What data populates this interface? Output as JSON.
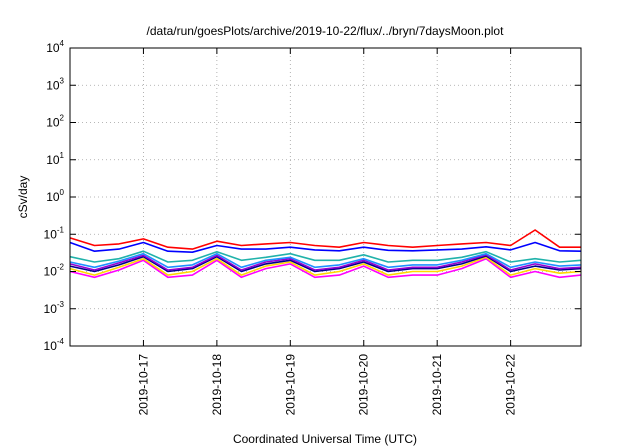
{
  "chart_data": {
    "type": "line",
    "title": "/data/run/goesPlots/archive/2019-10-22/flux/../bryn/7daysMoon.plot",
    "xlabel": "Coordinated Universal Time (UTC)",
    "ylabel": "cSv/day",
    "yscale": "log",
    "ylim": [
      0.0001,
      10000
    ],
    "xlim": [
      "2019-10-16T00:00",
      "2019-10-22T23:00"
    ],
    "grid": true,
    "y_ticks": [
      {
        "base": "10",
        "exp": "-4"
      },
      {
        "base": "10",
        "exp": "-3"
      },
      {
        "base": "10",
        "exp": "-2"
      },
      {
        "base": "10",
        "exp": "-1"
      },
      {
        "base": "10",
        "exp": "0"
      },
      {
        "base": "10",
        "exp": "1"
      },
      {
        "base": "10",
        "exp": "2"
      },
      {
        "base": "10",
        "exp": "3"
      },
      {
        "base": "10",
        "exp": "4"
      }
    ],
    "x_ticks": [
      "2019-10-17",
      "2019-10-18",
      "2019-10-19",
      "2019-10-20",
      "2019-10-21",
      "2019-10-22"
    ],
    "series": [
      {
        "color": "#ff00ff",
        "x": [
          "2019-10-16T00:00",
          "2019-10-16T08:00",
          "2019-10-16T16:00",
          "2019-10-17T00:00",
          "2019-10-17T08:00",
          "2019-10-17T16:00",
          "2019-10-18T00:00",
          "2019-10-18T08:00",
          "2019-10-18T16:00",
          "2019-10-19T00:00",
          "2019-10-19T08:00",
          "2019-10-19T16:00",
          "2019-10-20T00:00",
          "2019-10-20T08:00",
          "2019-10-20T16:00",
          "2019-10-21T00:00",
          "2019-10-21T08:00",
          "2019-10-21T16:00",
          "2019-10-22T00:00",
          "2019-10-22T08:00",
          "2019-10-22T16:00",
          "2019-10-22T23:00"
        ],
        "values": [
          0.01,
          0.007,
          0.011,
          0.02,
          0.007,
          0.008,
          0.02,
          0.007,
          0.012,
          0.016,
          0.007,
          0.008,
          0.014,
          0.007,
          0.008,
          0.008,
          0.012,
          0.022,
          0.007,
          0.01,
          0.007,
          0.008
        ]
      },
      {
        "color": "#ffd700",
        "x": [
          "2019-10-16T00:00",
          "2019-10-16T08:00",
          "2019-10-16T16:00",
          "2019-10-17T00:00",
          "2019-10-17T08:00",
          "2019-10-17T16:00",
          "2019-10-18T00:00",
          "2019-10-18T08:00",
          "2019-10-18T16:00",
          "2019-10-19T00:00",
          "2019-10-19T08:00",
          "2019-10-19T16:00",
          "2019-10-20T00:00",
          "2019-10-20T08:00",
          "2019-10-20T16:00",
          "2019-10-21T00:00",
          "2019-10-21T08:00",
          "2019-10-21T16:00",
          "2019-10-22T00:00",
          "2019-10-22T08:00",
          "2019-10-22T16:00",
          "2019-10-22T23:00"
        ],
        "values": [
          0.012,
          0.008,
          0.013,
          0.022,
          0.008,
          0.01,
          0.022,
          0.008,
          0.014,
          0.018,
          0.008,
          0.01,
          0.016,
          0.008,
          0.01,
          0.01,
          0.014,
          0.024,
          0.008,
          0.012,
          0.009,
          0.01
        ]
      },
      {
        "color": "#00008b",
        "x": [
          "2019-10-16T00:00",
          "2019-10-16T08:00",
          "2019-10-16T16:00",
          "2019-10-17T00:00",
          "2019-10-17T08:00",
          "2019-10-17T16:00",
          "2019-10-18T00:00",
          "2019-10-18T08:00",
          "2019-10-18T16:00",
          "2019-10-19T00:00",
          "2019-10-19T08:00",
          "2019-10-19T16:00",
          "2019-10-20T00:00",
          "2019-10-20T08:00",
          "2019-10-20T16:00",
          "2019-10-21T00:00",
          "2019-10-21T08:00",
          "2019-10-21T16:00",
          "2019-10-22T00:00",
          "2019-10-22T08:00",
          "2019-10-22T16:00",
          "2019-10-22T23:00"
        ],
        "values": [
          0.014,
          0.01,
          0.015,
          0.025,
          0.01,
          0.012,
          0.025,
          0.01,
          0.016,
          0.02,
          0.01,
          0.012,
          0.018,
          0.01,
          0.012,
          0.012,
          0.016,
          0.026,
          0.01,
          0.014,
          0.011,
          0.012
        ]
      },
      {
        "color": "#9400d3",
        "x": [
          "2019-10-16T00:00",
          "2019-10-16T08:00",
          "2019-10-16T16:00",
          "2019-10-17T00:00",
          "2019-10-17T08:00",
          "2019-10-17T16:00",
          "2019-10-18T00:00",
          "2019-10-18T08:00",
          "2019-10-18T16:00",
          "2019-10-19T00:00",
          "2019-10-19T08:00",
          "2019-10-19T16:00",
          "2019-10-20T00:00",
          "2019-10-20T08:00",
          "2019-10-20T16:00",
          "2019-10-21T00:00",
          "2019-10-21T08:00",
          "2019-10-21T16:00",
          "2019-10-22T00:00",
          "2019-10-22T08:00",
          "2019-10-22T16:00",
          "2019-10-22T23:00"
        ],
        "values": [
          0.016,
          0.011,
          0.017,
          0.027,
          0.011,
          0.013,
          0.027,
          0.011,
          0.018,
          0.022,
          0.011,
          0.013,
          0.02,
          0.011,
          0.013,
          0.013,
          0.018,
          0.028,
          0.011,
          0.016,
          0.012,
          0.013
        ]
      },
      {
        "color": "#1e90ff",
        "x": [
          "2019-10-16T00:00",
          "2019-10-16T08:00",
          "2019-10-16T16:00",
          "2019-10-17T00:00",
          "2019-10-17T08:00",
          "2019-10-17T16:00",
          "2019-10-18T00:00",
          "2019-10-18T08:00",
          "2019-10-18T16:00",
          "2019-10-19T00:00",
          "2019-10-19T08:00",
          "2019-10-19T16:00",
          "2019-10-20T00:00",
          "2019-10-20T08:00",
          "2019-10-20T16:00",
          "2019-10-21T00:00",
          "2019-10-21T08:00",
          "2019-10-21T16:00",
          "2019-10-22T00:00",
          "2019-10-22T08:00",
          "2019-10-22T16:00",
          "2019-10-22T23:00"
        ],
        "values": [
          0.018,
          0.013,
          0.019,
          0.03,
          0.013,
          0.015,
          0.03,
          0.013,
          0.02,
          0.024,
          0.013,
          0.015,
          0.022,
          0.013,
          0.015,
          0.015,
          0.02,
          0.03,
          0.013,
          0.018,
          0.014,
          0.015
        ]
      },
      {
        "color": "#20b2aa",
        "x": [
          "2019-10-16T00:00",
          "2019-10-16T08:00",
          "2019-10-16T16:00",
          "2019-10-17T00:00",
          "2019-10-17T08:00",
          "2019-10-17T16:00",
          "2019-10-18T00:00",
          "2019-10-18T08:00",
          "2019-10-18T16:00",
          "2019-10-19T00:00",
          "2019-10-19T08:00",
          "2019-10-19T16:00",
          "2019-10-20T00:00",
          "2019-10-20T08:00",
          "2019-10-20T16:00",
          "2019-10-21T00:00",
          "2019-10-21T08:00",
          "2019-10-21T16:00",
          "2019-10-22T00:00",
          "2019-10-22T08:00",
          "2019-10-22T16:00",
          "2019-10-22T23:00"
        ],
        "values": [
          0.025,
          0.018,
          0.022,
          0.035,
          0.018,
          0.02,
          0.034,
          0.02,
          0.024,
          0.03,
          0.02,
          0.02,
          0.028,
          0.018,
          0.02,
          0.02,
          0.024,
          0.034,
          0.018,
          0.022,
          0.018,
          0.02
        ]
      },
      {
        "color": "#0000ff",
        "x": [
          "2019-10-16T00:00",
          "2019-10-16T08:00",
          "2019-10-16T16:00",
          "2019-10-17T00:00",
          "2019-10-17T08:00",
          "2019-10-17T16:00",
          "2019-10-18T00:00",
          "2019-10-18T08:00",
          "2019-10-18T16:00",
          "2019-10-19T00:00",
          "2019-10-19T08:00",
          "2019-10-19T16:00",
          "2019-10-20T00:00",
          "2019-10-20T08:00",
          "2019-10-20T16:00",
          "2019-10-21T00:00",
          "2019-10-21T08:00",
          "2019-10-21T16:00",
          "2019-10-22T00:00",
          "2019-10-22T08:00",
          "2019-10-22T16:00",
          "2019-10-22T23:00"
        ],
        "values": [
          0.06,
          0.035,
          0.04,
          0.06,
          0.035,
          0.033,
          0.05,
          0.04,
          0.04,
          0.045,
          0.038,
          0.036,
          0.045,
          0.037,
          0.036,
          0.038,
          0.04,
          0.046,
          0.038,
          0.06,
          0.036,
          0.035
        ]
      },
      {
        "color": "#ff0000",
        "x": [
          "2019-10-16T00:00",
          "2019-10-16T08:00",
          "2019-10-16T16:00",
          "2019-10-17T00:00",
          "2019-10-17T08:00",
          "2019-10-17T16:00",
          "2019-10-18T00:00",
          "2019-10-18T08:00",
          "2019-10-18T16:00",
          "2019-10-19T00:00",
          "2019-10-19T08:00",
          "2019-10-19T16:00",
          "2019-10-20T00:00",
          "2019-10-20T08:00",
          "2019-10-20T16:00",
          "2019-10-21T00:00",
          "2019-10-21T08:00",
          "2019-10-21T16:00",
          "2019-10-22T00:00",
          "2019-10-22T08:00",
          "2019-10-22T16:00",
          "2019-10-22T23:00"
        ],
        "values": [
          0.08,
          0.05,
          0.055,
          0.075,
          0.045,
          0.04,
          0.065,
          0.05,
          0.055,
          0.06,
          0.05,
          0.045,
          0.06,
          0.05,
          0.045,
          0.05,
          0.055,
          0.06,
          0.05,
          0.13,
          0.045,
          0.045
        ]
      }
    ]
  }
}
